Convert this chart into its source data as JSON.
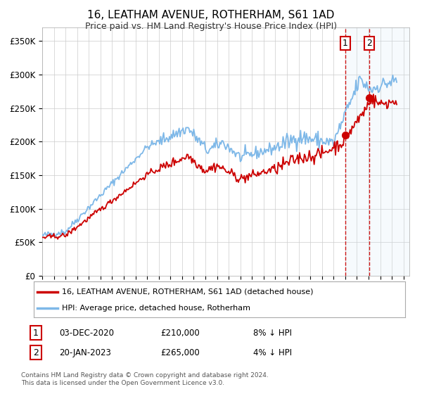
{
  "title": "16, LEATHAM AVENUE, ROTHERHAM, S61 1AD",
  "subtitle": "Price paid vs. HM Land Registry's House Price Index (HPI)",
  "ylabel_ticks": [
    "£0",
    "£50K",
    "£100K",
    "£150K",
    "£200K",
    "£250K",
    "£300K",
    "£350K"
  ],
  "ytick_vals": [
    0,
    50000,
    100000,
    150000,
    200000,
    250000,
    300000,
    350000
  ],
  "ylim": [
    0,
    370000
  ],
  "xlim_start": 1995.0,
  "xlim_end": 2026.5,
  "hpi_color": "#7EB8E8",
  "price_color": "#CC0000",
  "marker1_x": 2021.0,
  "marker2_x": 2023.05,
  "marker1_price": 210000,
  "marker2_price": 265000,
  "shade_color": "#D0E8F5",
  "legend_label1": "16, LEATHAM AVENUE, ROTHERHAM, S61 1AD (detached house)",
  "legend_label2": "HPI: Average price, detached house, Rotherham",
  "annot1_date": "03-DEC-2020",
  "annot1_price": "£210,000",
  "annot1_hpi": "8% ↓ HPI",
  "annot2_date": "20-JAN-2023",
  "annot2_price": "£265,000",
  "annot2_hpi": "4% ↓ HPI",
  "footer": "Contains HM Land Registry data © Crown copyright and database right 2024.\nThis data is licensed under the Open Government Licence v3.0.",
  "bg_color": "#FFFFFF",
  "grid_color": "#CCCCCC"
}
